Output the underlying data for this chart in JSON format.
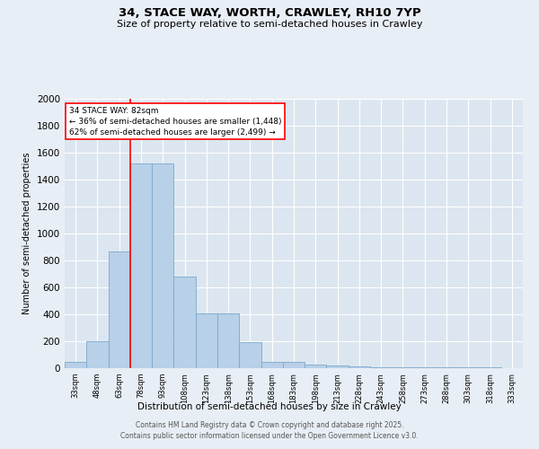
{
  "title1": "34, STACE WAY, WORTH, CRAWLEY, RH10 7YP",
  "title2": "Size of property relative to semi-detached houses in Crawley",
  "xlabel": "Distribution of semi-detached houses by size in Crawley",
  "ylabel": "Number of semi-detached properties",
  "categories": [
    "33sqm",
    "48sqm",
    "63sqm",
    "78sqm",
    "93sqm",
    "108sqm",
    "123sqm",
    "138sqm",
    "153sqm",
    "168sqm",
    "183sqm",
    "198sqm",
    "213sqm",
    "228sqm",
    "243sqm",
    "258sqm",
    "273sqm",
    "288sqm",
    "303sqm",
    "318sqm",
    "333sqm"
  ],
  "values": [
    50,
    200,
    870,
    1520,
    1520,
    680,
    410,
    410,
    195,
    50,
    50,
    30,
    20,
    15,
    10,
    5,
    5,
    5,
    5,
    5,
    0
  ],
  "bar_color": "#b8d0e8",
  "bar_edge_color": "#7ba8cc",
  "property_bin_index": 3,
  "red_line_label": "34 STACE WAY: 82sqm",
  "smaller_pct": 36,
  "larger_pct": 62,
  "smaller_count": 1448,
  "larger_count": 2499,
  "ylim": [
    0,
    2000
  ],
  "yticks": [
    0,
    200,
    400,
    600,
    800,
    1000,
    1200,
    1400,
    1600,
    1800,
    2000
  ],
  "bg_color": "#e8eef5",
  "plot_bg_color": "#dce6f0",
  "footer": "Contains HM Land Registry data © Crown copyright and database right 2025.\nContains public sector information licensed under the Open Government Licence v3.0."
}
